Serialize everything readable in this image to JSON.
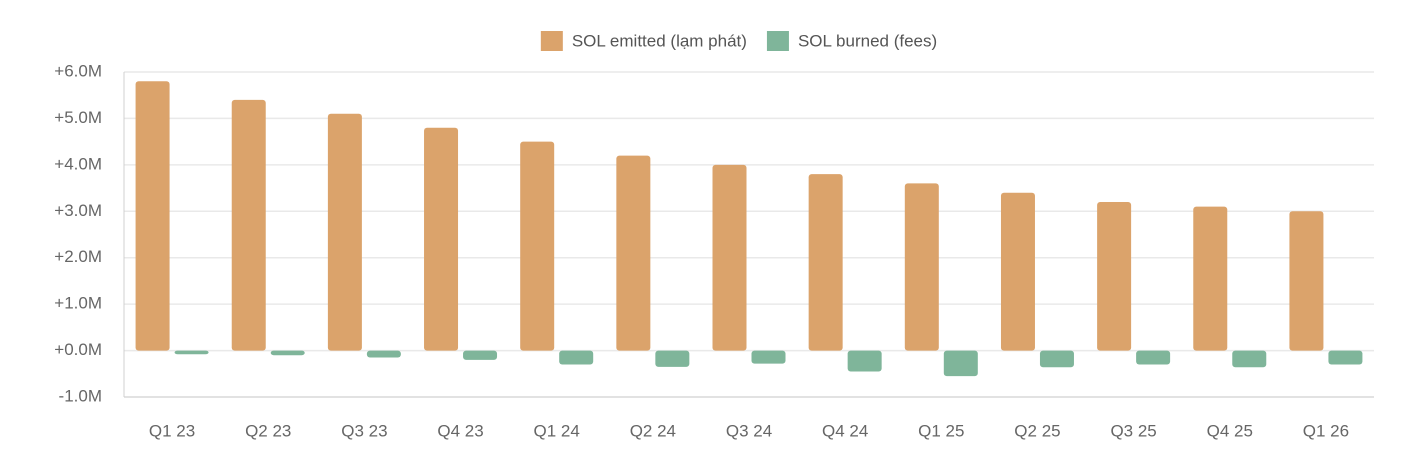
{
  "chart_data": {
    "type": "bar",
    "categories": [
      "Q1 23",
      "Q2 23",
      "Q3 23",
      "Q4 23",
      "Q1 24",
      "Q2 24",
      "Q3 24",
      "Q4 24",
      "Q1 25",
      "Q2 25",
      "Q3 25",
      "Q4 25",
      "Q1 26"
    ],
    "series": [
      {
        "name": "SOL emitted (lạm phát)",
        "color": "#dba36b",
        "values": [
          5800000,
          5400000,
          5100000,
          4800000,
          4500000,
          4200000,
          4000000,
          3800000,
          3600000,
          3400000,
          3200000,
          3100000,
          3000000
        ]
      },
      {
        "name": "SOL burned (fees)",
        "color": "#7fb59a",
        "values": [
          -80000,
          -100000,
          -150000,
          -200000,
          -300000,
          -350000,
          -280000,
          -450000,
          -550000,
          -360000,
          -300000,
          -360000,
          -300000
        ]
      }
    ],
    "ylim": [
      -1000000,
      6000000
    ],
    "yticks": [
      {
        "value": -1000000,
        "label": "-1.0M"
      },
      {
        "value": 0,
        "label": "+0.0M"
      },
      {
        "value": 1000000,
        "label": "+1.0M"
      },
      {
        "value": 2000000,
        "label": "+2.0M"
      },
      {
        "value": 3000000,
        "label": "+3.0M"
      },
      {
        "value": 4000000,
        "label": "+4.0M"
      },
      {
        "value": 5000000,
        "label": "+5.0M"
      },
      {
        "value": 6000000,
        "label": "+6.0M"
      }
    ],
    "grid": true,
    "legend": "top"
  }
}
